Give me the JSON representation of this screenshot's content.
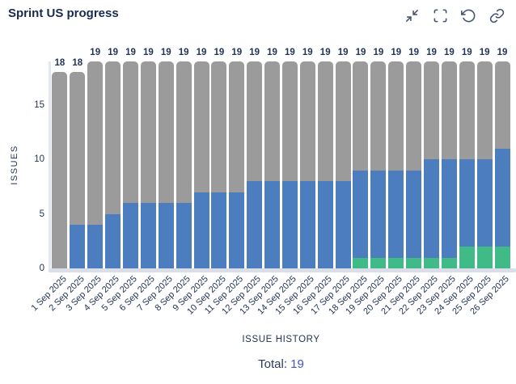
{
  "header": {
    "title": "Sprint US progress",
    "icons": [
      {
        "name": "collapse-icon"
      },
      {
        "name": "fullscreen-icon"
      },
      {
        "name": "refresh-icon"
      },
      {
        "name": "link-icon"
      }
    ]
  },
  "chart_data": {
    "type": "bar",
    "stacked": true,
    "title": "Sprint US progress",
    "xlabel": "ISSUE HISTORY",
    "ylabel": "ISSUES",
    "yticks": [
      0,
      5,
      10,
      15
    ],
    "ylim": [
      0,
      19
    ],
    "grid": false,
    "legend": false,
    "categories": [
      "1 Sep 2025",
      "2 Sep 2025",
      "3 Sep 2025",
      "4 Sep 2025",
      "5 Sep 2025",
      "6 Sep 2025",
      "7 Sep 2025",
      "8 Sep 2025",
      "9 Sep 2025",
      "10 Sep 2025",
      "11 Sep 2025",
      "12 Sep 2025",
      "13 Sep 2025",
      "14 Sep 2025",
      "15 Sep 2025",
      "16 Sep 2025",
      "17 Sep 2025",
      "18 Sep 2025",
      "19 Sep 2025",
      "20 Sep 2025",
      "21 Sep 2025",
      "22 Sep 2025",
      "23 Sep 2025",
      "24 Sep 2025",
      "25 Sep 2025",
      "26 Sep 2025"
    ],
    "totals": [
      18,
      18,
      19,
      19,
      19,
      19,
      19,
      19,
      19,
      19,
      19,
      19,
      19,
      19,
      19,
      19,
      19,
      19,
      19,
      19,
      19,
      19,
      19,
      19,
      19,
      19
    ],
    "series": [
      {
        "name": "green",
        "color": "#40BA87",
        "values": [
          0,
          0,
          0,
          0,
          0,
          0,
          0,
          0,
          0,
          0,
          0,
          0,
          0,
          0,
          0,
          0,
          0,
          1,
          1,
          1,
          1,
          1,
          1,
          2,
          2,
          2
        ]
      },
      {
        "name": "blue",
        "color": "#4C7DBE",
        "values": [
          0,
          4,
          4,
          5,
          6,
          6,
          6,
          6,
          7,
          7,
          7,
          8,
          8,
          8,
          8,
          8,
          8,
          8,
          8,
          8,
          8,
          9,
          9,
          8,
          8,
          9
        ]
      },
      {
        "name": "gray",
        "color": "#9B9B9B",
        "values": [
          18,
          14,
          15,
          14,
          13,
          13,
          13,
          13,
          12,
          12,
          12,
          11,
          11,
          11,
          11,
          11,
          11,
          10,
          10,
          10,
          10,
          9,
          9,
          9,
          9,
          8
        ]
      }
    ]
  },
  "footer": {
    "total_label": "Total:",
    "total_value": "19"
  }
}
